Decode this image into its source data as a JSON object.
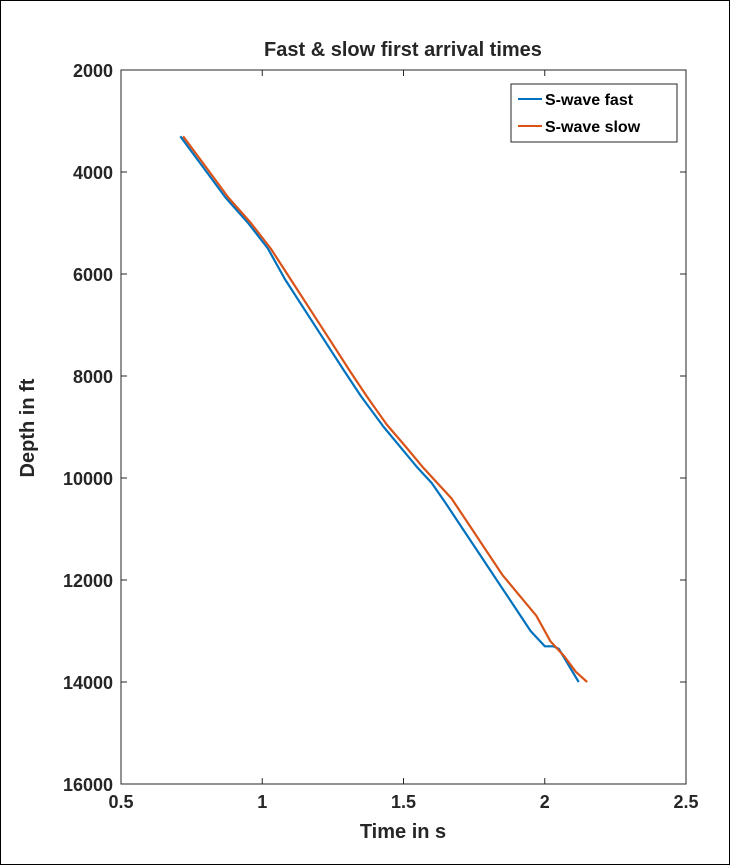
{
  "chart_data": {
    "type": "line",
    "title": "Fast & slow first arrival times",
    "xlabel": "Time in s",
    "ylabel": "Depth in ft",
    "xlim": [
      0.5,
      2.5
    ],
    "ylim": [
      2000,
      16000
    ],
    "y_reversed": true,
    "grid": false,
    "legend_position": "top-right",
    "xticks": [
      0.5,
      1,
      1.5,
      2,
      2.5
    ],
    "xtick_labels": [
      "0.5",
      "1",
      "1.5",
      "2",
      "2.5"
    ],
    "yticks": [
      2000,
      4000,
      6000,
      8000,
      10000,
      12000,
      14000,
      16000
    ],
    "ytick_labels": [
      "2000",
      "4000",
      "6000",
      "8000",
      "10000",
      "12000",
      "14000",
      "16000"
    ],
    "series": [
      {
        "name": "S-wave fast",
        "color": "#0072BD",
        "x": [
          0.71,
          0.79,
          0.87,
          0.95,
          1.02,
          1.08,
          1.15,
          1.22,
          1.29,
          1.35,
          1.43,
          1.49,
          1.55,
          1.6,
          1.65,
          1.71,
          1.77,
          1.83,
          1.89,
          1.95,
          2.0,
          2.03,
          2.05,
          2.12
        ],
        "y": [
          3300,
          3900,
          4500,
          5000,
          5500,
          6100,
          6700,
          7300,
          7900,
          8400,
          9000,
          9400,
          9800,
          10100,
          10500,
          11000,
          11500,
          12000,
          12500,
          13000,
          13300,
          13300,
          13350,
          14000
        ]
      },
      {
        "name": "S-wave slow",
        "color": "#D95319",
        "x": [
          0.72,
          0.8,
          0.88,
          0.96,
          1.03,
          1.1,
          1.17,
          1.24,
          1.31,
          1.37,
          1.44,
          1.51,
          1.57,
          1.62,
          1.67,
          1.73,
          1.79,
          1.85,
          1.91,
          1.97,
          2.02,
          2.07,
          2.11,
          2.15
        ],
        "y": [
          3300,
          3900,
          4500,
          5000,
          5500,
          6100,
          6700,
          7300,
          7900,
          8400,
          8950,
          9400,
          9800,
          10100,
          10400,
          10900,
          11400,
          11900,
          12300,
          12700,
          13200,
          13500,
          13800,
          14000
        ]
      }
    ]
  }
}
